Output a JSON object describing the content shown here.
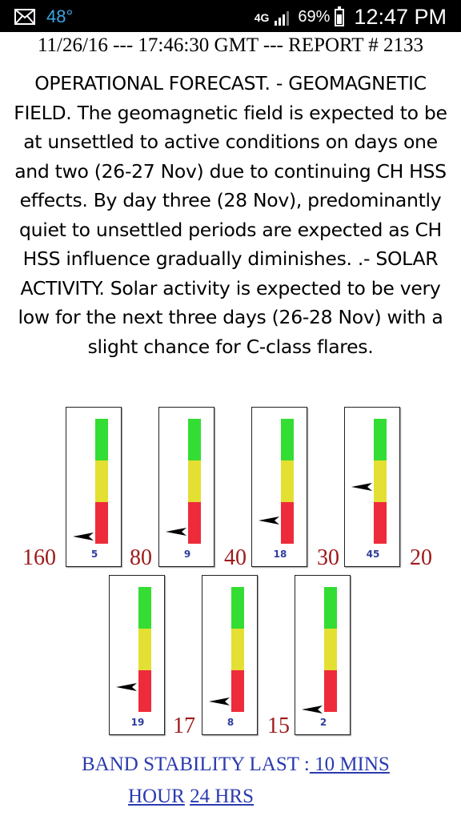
{
  "status_bar": {
    "temperature": "48°",
    "network": "4G",
    "battery": "69%",
    "time": "12:47 PM"
  },
  "report_header": "11/26/16 --- 17:46:30 GMT --- REPORT # 2133",
  "forecast_text": "OPERATIONAL FORECAST. - GEOMAGNETIC FIELD. The geomagnetic field is expected to be at unsettled to active conditions on days one and two (26-27 Nov) due to continuing CH HSS effects. By day three (28 Nov), predominantly quiet to unsettled periods are expected as CH HSS influence gradually diminishes. .- SOLAR ACTIVITY. Solar activity is expected to be very low for the next three days (26-28 Nov) with a slight chance for C-class flares.",
  "bands": [
    {
      "band": "160",
      "value": "5"
    },
    {
      "band": "80",
      "value": "9"
    },
    {
      "band": "40",
      "value": "18"
    },
    {
      "band": "30",
      "value": "45"
    },
    {
      "band": "20",
      "value": "19"
    },
    {
      "band": "17",
      "value": "8"
    },
    {
      "band": "15",
      "value": "2"
    }
  ],
  "band_stability": {
    "label": "BAND STABILITY LAST :",
    "link_10min": " 10 MINS",
    "link_hour": "HOUR",
    "link_24hrs": " 24 HRS"
  },
  "colors": {
    "good": "#33dd33",
    "fair": "#e3e033",
    "poor": "#ee2b3a",
    "band_label": "#9e1a1a",
    "link": "#2a3ab0"
  }
}
